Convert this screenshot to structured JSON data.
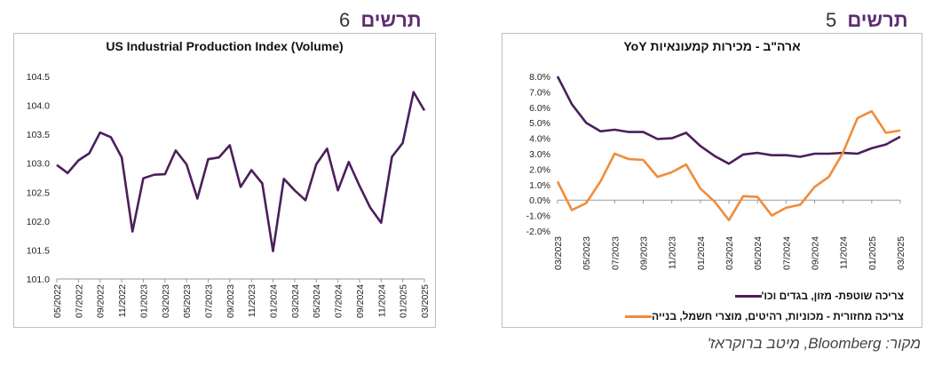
{
  "headings": {
    "left": {
      "label": "תרשים",
      "number": "6"
    },
    "right": {
      "label": "תרשים",
      "number": "5"
    }
  },
  "source": "מקור: Bloomberg, מיטב ברוקראז'",
  "colors": {
    "purple": "#4b1f5b",
    "orange": "#f08c3a"
  },
  "chart_data": [
    {
      "type": "line",
      "title": "US Industrial Production Index (Volume)",
      "ylim": [
        101.0,
        104.5
      ],
      "yticks": [
        "101.0",
        "101.5",
        "102.0",
        "102.5",
        "103.0",
        "103.5",
        "104.0",
        "104.5"
      ],
      "xticks": [
        "05/2022",
        "07/2022",
        "09/2022",
        "11/2022",
        "01/2023",
        "03/2023",
        "05/2023",
        "07/2023",
        "09/2023",
        "11/2023",
        "01/2024",
        "03/2024",
        "05/2024",
        "07/2024",
        "09/2024",
        "11/2024",
        "01/2025",
        "03/2025"
      ],
      "x": [
        "05/2022",
        "06/2022",
        "07/2022",
        "08/2022",
        "09/2022",
        "10/2022",
        "11/2022",
        "12/2022",
        "01/2023",
        "02/2023",
        "03/2023",
        "04/2023",
        "05/2023",
        "06/2023",
        "07/2023",
        "08/2023",
        "09/2023",
        "10/2023",
        "11/2023",
        "12/2023",
        "01/2024",
        "02/2024",
        "03/2024",
        "04/2024",
        "05/2024",
        "06/2024",
        "07/2024",
        "08/2024",
        "09/2024",
        "10/2024",
        "11/2024",
        "12/2024",
        "01/2025",
        "02/2025",
        "03/2025"
      ],
      "series": [
        {
          "values": [
            102.97,
            102.83,
            103.05,
            103.17,
            103.53,
            103.45,
            103.1,
            101.82,
            102.74,
            102.8,
            102.81,
            103.22,
            102.98,
            102.39,
            103.07,
            103.1,
            103.31,
            102.59,
            102.88,
            102.65,
            101.48,
            102.73,
            102.53,
            102.36,
            102.98,
            103.25,
            102.53,
            103.02,
            102.61,
            102.23,
            101.97,
            103.11,
            103.35,
            104.23,
            103.91
          ]
        }
      ],
      "grid": false
    },
    {
      "type": "line",
      "title": "ארה\"ב - מכירות קמעונאיות YoY",
      "ylim": [
        -2.0,
        8.0
      ],
      "yticks": [
        "8.0%",
        "7.0%",
        "6.0%",
        "5.0%",
        "4.0%",
        "3.0%",
        "2.0%",
        "1.0%",
        "0.0%",
        "-1.0%",
        "-2.0%"
      ],
      "xticks": [
        "03/2023",
        "05/2023",
        "07/2023",
        "09/2023",
        "11/2023",
        "01/2024",
        "03/2024",
        "05/2024",
        "07/2024",
        "09/2024",
        "11/2024",
        "01/2025",
        "03/2025"
      ],
      "x": [
        "03/2023",
        "04/2023",
        "05/2023",
        "06/2023",
        "07/2023",
        "08/2023",
        "09/2023",
        "10/2023",
        "11/2023",
        "12/2023",
        "01/2024",
        "02/2024",
        "03/2024",
        "04/2024",
        "05/2024",
        "06/2024",
        "07/2024",
        "08/2024",
        "09/2024",
        "10/2024",
        "11/2024",
        "12/2024",
        "01/2025",
        "02/2025",
        "03/2025"
      ],
      "series": [
        {
          "name": "צריכה שוטפת- מזון, בגדים וכו'",
          "color": "#4b1f5b",
          "values": [
            8.0,
            6.2,
            5.0,
            4.45,
            4.55,
            4.4,
            4.4,
            3.95,
            4.0,
            4.35,
            3.5,
            2.85,
            2.35,
            2.95,
            3.05,
            2.9,
            2.9,
            2.8,
            3.0,
            3.0,
            3.05,
            3.0,
            3.35,
            3.6,
            4.1
          ]
        },
        {
          "name": "צריכה מחזורית - מכוניות, רהיטים, מוצרי חשמל, בנייה",
          "color": "#f08c3a",
          "values": [
            1.2,
            -0.65,
            -0.2,
            1.2,
            3.0,
            2.65,
            2.6,
            1.5,
            1.8,
            2.3,
            0.75,
            -0.1,
            -1.3,
            0.25,
            0.2,
            -1.0,
            -0.5,
            -0.3,
            0.85,
            1.5,
            3.1,
            5.3,
            5.75,
            4.35,
            4.5
          ]
        }
      ],
      "grid": false
    }
  ]
}
